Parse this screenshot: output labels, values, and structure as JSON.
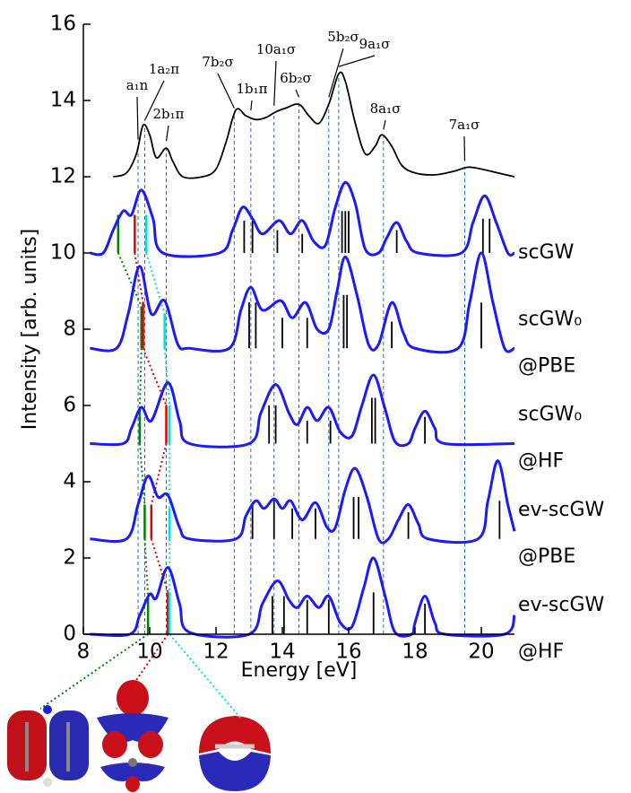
{
  "chart_data": {
    "type": "line",
    "xlabel": "Energy [eV]",
    "ylabel": "Intensity [arb. units]",
    "xlim": [
      8,
      21
    ],
    "ylim": [
      0,
      16
    ],
    "xticks": [
      8,
      10,
      12,
      14,
      16,
      18,
      20
    ],
    "yticks": [
      0,
      2,
      4,
      6,
      8,
      10,
      12,
      14,
      16
    ],
    "experiment": {
      "color": "#000000",
      "x": [
        8.9,
        9.3,
        9.6,
        9.8,
        10.0,
        10.2,
        10.5,
        10.7,
        11.0,
        11.6,
        12.0,
        12.3,
        12.6,
        12.9,
        13.2,
        13.5,
        13.8,
        14.1,
        14.5,
        14.8,
        15.1,
        15.4,
        15.7,
        15.9,
        16.2,
        16.5,
        16.8,
        17.0,
        17.3,
        17.6,
        18.0,
        18.6,
        19.2,
        19.6,
        20.0,
        20.5,
        21.0
      ],
      "values": [
        12.0,
        12.1,
        12.6,
        13.35,
        13.1,
        12.5,
        12.75,
        12.4,
        12.0,
        12.0,
        12.2,
        12.9,
        13.75,
        13.6,
        13.5,
        13.55,
        13.7,
        13.8,
        13.9,
        13.6,
        13.4,
        13.9,
        14.7,
        14.5,
        13.4,
        12.6,
        12.8,
        13.1,
        12.8,
        12.3,
        12.1,
        12.05,
        12.15,
        12.25,
        12.2,
        12.1,
        12.0
      ]
    },
    "assignments": [
      {
        "label": "a₁n",
        "x": 9.65
      },
      {
        "label": "1a₂π",
        "x": 9.85
      },
      {
        "label": "2b₁π",
        "x": 10.5
      },
      {
        "label": "7b₂σ",
        "x": 12.55
      },
      {
        "label": "1b₁π",
        "x": 13.05
      },
      {
        "label": "10a₁σ",
        "x": 13.75
      },
      {
        "label": "6b₂σ",
        "x": 14.5
      },
      {
        "label": "5b₂σ",
        "x": 15.4
      },
      {
        "label": "9a₁σ",
        "x": 15.7
      },
      {
        "label": "8a₁σ",
        "x": 17.05
      },
      {
        "label": "7a₁σ",
        "x": 19.5
      }
    ],
    "series": [
      {
        "name_lines": [
          "scGW"
        ],
        "color": "#1a1aff",
        "baseline": 10,
        "x": [
          8.2,
          8.6,
          8.9,
          9.2,
          9.45,
          9.75,
          10.1,
          10.4,
          12.1,
          12.5,
          12.8,
          13.1,
          13.4,
          13.9,
          14.25,
          14.6,
          14.95,
          15.3,
          15.6,
          15.9,
          16.2,
          16.5,
          16.9,
          17.15,
          17.45,
          17.75,
          18.1,
          19.4,
          19.75,
          20.1,
          20.45,
          20.8,
          21.0
        ],
        "values": [
          10.0,
          10.0,
          10.6,
          11.1,
          11.0,
          11.65,
          10.9,
          10.0,
          10.0,
          10.6,
          11.2,
          10.9,
          10.5,
          10.85,
          10.5,
          10.85,
          10.3,
          10.2,
          11.2,
          11.85,
          11.3,
          10.1,
          10.0,
          10.4,
          10.8,
          10.3,
          10.0,
          10.0,
          10.8,
          11.5,
          10.8,
          10.0,
          10.0
        ],
        "sticks": {
          "x": [
            9.05,
            9.55,
            9.9,
            12.85,
            13.1,
            13.85,
            14.6,
            15.8,
            15.9,
            16.0,
            17.45,
            20.05,
            20.25
          ],
          "values": [
            11.0,
            11.0,
            11.0,
            10.85,
            10.85,
            10.6,
            10.5,
            11.1,
            11.1,
            11.1,
            10.6,
            10.9,
            10.9
          ],
          "colors": [
            "#008000",
            "#e00000",
            "#00e0e0",
            "#000000",
            "#000000",
            "#000000",
            "#000000",
            "#000000",
            "#000000",
            "#000000",
            "#000000",
            "#000000",
            "#000000"
          ]
        }
      },
      {
        "name_lines": [
          "scGW₀",
          "@PBE"
        ],
        "color": "#1a1aff",
        "baseline": 7.5,
        "x": [
          8.2,
          9.0,
          9.35,
          9.7,
          10.05,
          10.45,
          10.85,
          11.2,
          12.4,
          12.75,
          13.05,
          13.4,
          13.95,
          14.3,
          14.7,
          15.05,
          15.4,
          15.65,
          15.9,
          16.25,
          16.6,
          16.9,
          17.3,
          17.65,
          18.0,
          19.3,
          19.65,
          20.0,
          20.35,
          20.7,
          21.0
        ],
        "values": [
          7.5,
          7.5,
          8.4,
          9.65,
          8.4,
          8.75,
          7.6,
          7.5,
          7.5,
          8.5,
          9.1,
          8.5,
          8.75,
          8.3,
          8.7,
          8.0,
          8.0,
          9.0,
          9.9,
          8.9,
          7.6,
          7.6,
          8.7,
          7.9,
          7.5,
          7.5,
          8.7,
          10.0,
          8.7,
          7.5,
          7.5
        ],
        "sticks": {
          "x": [
            9.75,
            9.8,
            10.45,
            13.0,
            13.2,
            14.0,
            14.75,
            15.85,
            15.95,
            17.3,
            20.0
          ],
          "values": [
            8.6,
            8.7,
            8.4,
            8.7,
            8.7,
            8.3,
            8.3,
            8.9,
            8.9,
            8.2,
            8.7
          ],
          "colors": [
            "#008000",
            "#e00000",
            "#00e0e0",
            "#000000",
            "#000000",
            "#000000",
            "#000000",
            "#000000",
            "#000000",
            "#000000",
            "#000000"
          ]
        }
      },
      {
        "name_lines": [
          "scGW₀",
          "@HF"
        ],
        "color": "#1a1aff",
        "baseline": 5,
        "x": [
          8.2,
          9.2,
          9.45,
          9.75,
          10.05,
          10.55,
          10.9,
          11.2,
          13.0,
          13.35,
          13.8,
          14.2,
          14.45,
          14.75,
          15.05,
          15.4,
          15.75,
          16.1,
          16.4,
          16.75,
          17.1,
          17.4,
          17.8,
          18.0,
          18.3,
          18.6,
          18.9,
          21.0
        ],
        "values": [
          5.0,
          5.0,
          5.4,
          5.95,
          5.6,
          6.6,
          5.6,
          5.0,
          5.0,
          5.8,
          6.55,
          5.8,
          5.5,
          5.95,
          5.6,
          5.95,
          5.3,
          5.2,
          6.0,
          6.8,
          5.9,
          5.05,
          5.0,
          5.4,
          5.85,
          5.4,
          5.0,
          5.0
        ],
        "sticks": {
          "x": [
            9.7,
            10.5,
            10.6,
            13.6,
            13.8,
            14.75,
            15.45,
            16.7,
            16.8,
            18.3
          ],
          "values": [
            5.9,
            6.0,
            6.0,
            6.0,
            6.0,
            5.6,
            5.6,
            6.2,
            6.2,
            5.7
          ],
          "colors": [
            "#008000",
            "#e00000",
            "#00e0e0",
            "#000000",
            "#000000",
            "#000000",
            "#000000",
            "#000000",
            "#000000",
            "#000000"
          ]
        }
      },
      {
        "name_lines": [
          "ev-scGW",
          "@PBE"
        ],
        "color": "#1a1aff",
        "baseline": 2.5,
        "x": [
          8.2,
          9.3,
          9.65,
          9.95,
          10.25,
          10.55,
          10.9,
          11.2,
          12.6,
          12.9,
          13.2,
          13.45,
          13.75,
          14.0,
          14.25,
          14.6,
          15.0,
          15.35,
          15.6,
          15.9,
          16.2,
          16.55,
          16.9,
          17.2,
          17.5,
          17.8,
          18.1,
          18.4,
          19.9,
          20.2,
          20.5,
          20.8,
          21.0
        ],
        "values": [
          2.5,
          2.5,
          3.4,
          4.15,
          3.6,
          3.65,
          2.8,
          2.5,
          2.5,
          3.1,
          3.5,
          3.3,
          3.55,
          3.3,
          3.5,
          3.0,
          3.45,
          2.8,
          2.8,
          3.8,
          4.35,
          3.6,
          2.5,
          2.5,
          3.0,
          3.4,
          2.9,
          2.5,
          2.5,
          3.5,
          4.55,
          3.4,
          2.7
        ],
        "sticks": {
          "x": [
            9.85,
            10.05,
            10.6,
            13.1,
            13.75,
            14.3,
            15.0,
            16.15,
            16.3,
            17.8,
            20.55
          ],
          "values": [
            3.4,
            3.4,
            3.3,
            3.4,
            3.5,
            3.3,
            3.3,
            3.6,
            3.6,
            3.2,
            3.5
          ],
          "colors": [
            "#008000",
            "#e00000",
            "#00e0e0",
            "#000000",
            "#000000",
            "#000000",
            "#000000",
            "#000000",
            "#000000",
            "#000000",
            "#000000"
          ]
        }
      },
      {
        "name_lines": [
          "ev-scGW",
          "@HF"
        ],
        "color": "#1a1aff",
        "baseline": 0,
        "x": [
          8.2,
          9.4,
          9.7,
          10.0,
          10.2,
          10.55,
          10.9,
          11.2,
          13.0,
          13.4,
          13.85,
          14.2,
          14.45,
          14.75,
          15.1,
          15.4,
          15.75,
          16.1,
          16.45,
          16.75,
          17.1,
          17.4,
          17.9,
          18.0,
          18.3,
          18.6,
          18.9,
          20.7,
          21.0
        ],
        "values": [
          0.0,
          0.0,
          0.5,
          1.05,
          0.95,
          1.75,
          0.8,
          0.05,
          0.0,
          0.8,
          1.4,
          0.9,
          0.7,
          1.0,
          0.7,
          1.0,
          0.3,
          0.2,
          1.2,
          2.0,
          1.0,
          0.05,
          0.0,
          0.3,
          1.0,
          0.3,
          0.0,
          0.0,
          0.5
        ],
        "sticks": {
          "x": [
            9.95,
            10.55,
            10.6,
            13.7,
            14.05,
            14.75,
            15.4,
            16.75,
            18.3
          ],
          "values": [
            1.0,
            1.1,
            1.1,
            1.0,
            1.0,
            0.9,
            0.9,
            1.1,
            0.8
          ],
          "colors": [
            "#008000",
            "#e00000",
            "#00e0e0",
            "#000000",
            "#000000",
            "#000000",
            "#000000",
            "#000000",
            "#000000"
          ]
        }
      }
    ]
  }
}
